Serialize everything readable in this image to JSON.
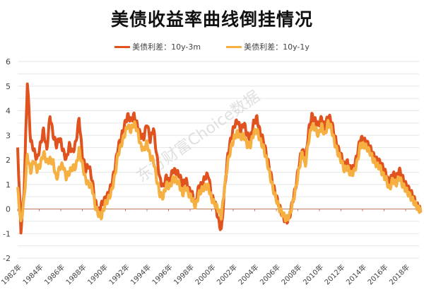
{
  "title": "美债收益率曲线倒挂情况",
  "legend": [
    {
      "label": "美债利差：10y-3m",
      "color": "#E0521E"
    },
    {
      "label": "美债利差：10y-1y",
      "color": "#F5B041"
    }
  ],
  "watermark": "东方财富Choice数据",
  "chart_data": {
    "type": "line",
    "title": "美债收益率曲线倒挂情况",
    "xlabel": "",
    "ylabel": "",
    "ylim": [
      -2,
      6
    ],
    "yticks": [
      6,
      5,
      4,
      3,
      2,
      1,
      0,
      -1,
      -2
    ],
    "xticks": [
      "1982年",
      "1984年",
      "1986年",
      "1988年",
      "1990年",
      "1992年",
      "1994年",
      "1996年",
      "1998年",
      "2000年",
      "2002年",
      "2004年",
      "2006年",
      "2008年",
      "2010年",
      "2012年",
      "2014年",
      "2016年",
      "2018年"
    ],
    "grid": true,
    "legend_position": "top",
    "x": [
      1982.0,
      1982.3,
      1982.6,
      1982.9,
      1983.2,
      1983.5,
      1983.8,
      1984.1,
      1984.4,
      1984.7,
      1985.0,
      1985.3,
      1985.6,
      1985.9,
      1986.2,
      1986.5,
      1986.8,
      1987.1,
      1987.4,
      1987.7,
      1988.0,
      1988.3,
      1988.6,
      1988.9,
      1989.2,
      1989.5,
      1989.8,
      1990.1,
      1990.4,
      1990.7,
      1991.0,
      1991.3,
      1991.6,
      1991.9,
      1992.2,
      1992.5,
      1992.8,
      1993.1,
      1993.4,
      1993.7,
      1994.0,
      1994.3,
      1994.6,
      1994.9,
      1995.2,
      1995.5,
      1995.8,
      1996.1,
      1996.4,
      1996.7,
      1997.0,
      1997.3,
      1997.6,
      1997.9,
      1998.2,
      1998.5,
      1998.8,
      1999.1,
      1999.4,
      1999.7,
      2000.0,
      2000.3,
      2000.6,
      2000.9,
      2001.2,
      2001.5,
      2001.8,
      2002.1,
      2002.4,
      2002.7,
      2003.0,
      2003.3,
      2003.6,
      2003.9,
      2004.2,
      2004.5,
      2004.8,
      2005.1,
      2005.4,
      2005.7,
      2006.0,
      2006.3,
      2006.6,
      2006.9,
      2007.2,
      2007.5,
      2007.8,
      2008.1,
      2008.4,
      2008.7,
      2009.0,
      2009.3,
      2009.6,
      2009.9,
      2010.2,
      2010.5,
      2010.8,
      2011.1,
      2011.4,
      2011.7,
      2012.0,
      2012.3,
      2012.6,
      2012.9,
      2013.2,
      2013.5,
      2013.8,
      2014.1,
      2014.4,
      2014.7,
      2015.0,
      2015.3,
      2015.6,
      2015.9,
      2016.2,
      2016.5,
      2016.8,
      2017.1,
      2017.4,
      2017.7,
      2018.0,
      2018.3,
      2018.6,
      2018.9,
      2019.2,
      2019.4
    ],
    "series": [
      {
        "name": "美债利差：10y-3m",
        "color": "#E0521E",
        "values": [
          2.5,
          -0.9,
          0.8,
          5.2,
          2.8,
          2.4,
          2.0,
          2.6,
          3.2,
          2.4,
          3.8,
          3.0,
          2.6,
          2.9,
          2.4,
          2.0,
          2.6,
          2.3,
          2.7,
          3.7,
          2.2,
          1.6,
          1.8,
          1.2,
          0.3,
          -0.1,
          0.2,
          0.4,
          0.6,
          1.0,
          1.6,
          2.5,
          2.9,
          3.4,
          3.8,
          3.6,
          3.8,
          3.4,
          3.0,
          2.9,
          3.5,
          2.8,
          3.3,
          2.2,
          1.2,
          0.9,
          1.3,
          1.1,
          1.6,
          1.5,
          1.4,
          1.0,
          1.2,
          0.8,
          0.6,
          0.2,
          0.9,
          1.0,
          1.3,
          1.4,
          0.5,
          0.3,
          -0.4,
          -0.9,
          0.8,
          2.2,
          2.9,
          3.4,
          3.6,
          3.2,
          3.5,
          3.0,
          2.9,
          3.5,
          3.7,
          3.1,
          2.8,
          2.2,
          1.6,
          1.0,
          0.5,
          0.1,
          -0.3,
          -0.5,
          -0.4,
          0.3,
          0.9,
          1.8,
          2.5,
          1.9,
          3.2,
          3.8,
          3.6,
          3.4,
          3.7,
          3.3,
          3.8,
          3.6,
          3.0,
          2.5,
          2.2,
          1.8,
          1.9,
          1.6,
          1.7,
          2.2,
          2.9,
          2.8,
          2.7,
          2.5,
          2.2,
          2.0,
          1.9,
          1.7,
          1.4,
          1.0,
          1.5,
          1.2,
          1.6,
          1.3,
          1.0,
          0.8,
          0.6,
          0.3,
          0.05,
          -0.05
        ]
      },
      {
        "name": "美债利差：10y-1y",
        "color": "#F5B041",
        "values": [
          0.8,
          -0.6,
          0.4,
          2.2,
          1.5,
          2.0,
          1.6,
          1.8,
          2.3,
          1.9,
          2.0,
          1.9,
          1.2,
          1.7,
          1.8,
          1.3,
          1.5,
          1.7,
          1.7,
          2.4,
          1.8,
          1.2,
          1.0,
          0.9,
          0.1,
          -0.2,
          -0.3,
          0.2,
          0.4,
          0.7,
          1.3,
          2.2,
          2.6,
          3.0,
          3.4,
          3.2,
          3.5,
          3.2,
          2.6,
          2.4,
          2.7,
          2.1,
          2.0,
          1.2,
          0.6,
          0.5,
          1.0,
          0.9,
          1.2,
          1.2,
          1.0,
          0.6,
          0.9,
          0.6,
          0.4,
          0.1,
          0.6,
          0.8,
          0.9,
          0.9,
          0.4,
          0.2,
          0.0,
          -0.3,
          0.9,
          1.9,
          2.5,
          2.9,
          3.1,
          2.9,
          3.0,
          2.6,
          2.6,
          3.1,
          3.2,
          2.8,
          2.5,
          2.0,
          1.4,
          0.8,
          0.4,
          0.0,
          -0.2,
          -0.4,
          -0.3,
          0.2,
          0.8,
          1.6,
          2.3,
          1.8,
          2.8,
          3.4,
          3.3,
          3.0,
          3.4,
          3.0,
          3.5,
          3.3,
          2.7,
          2.3,
          2.0,
          1.6,
          1.7,
          1.4,
          1.5,
          1.9,
          2.6,
          2.6,
          2.5,
          2.3,
          2.0,
          1.8,
          1.7,
          1.4,
          1.2,
          0.8,
          1.2,
          1.0,
          1.3,
          1.0,
          0.8,
          0.6,
          0.4,
          0.2,
          0.0,
          -0.1
        ]
      }
    ]
  }
}
